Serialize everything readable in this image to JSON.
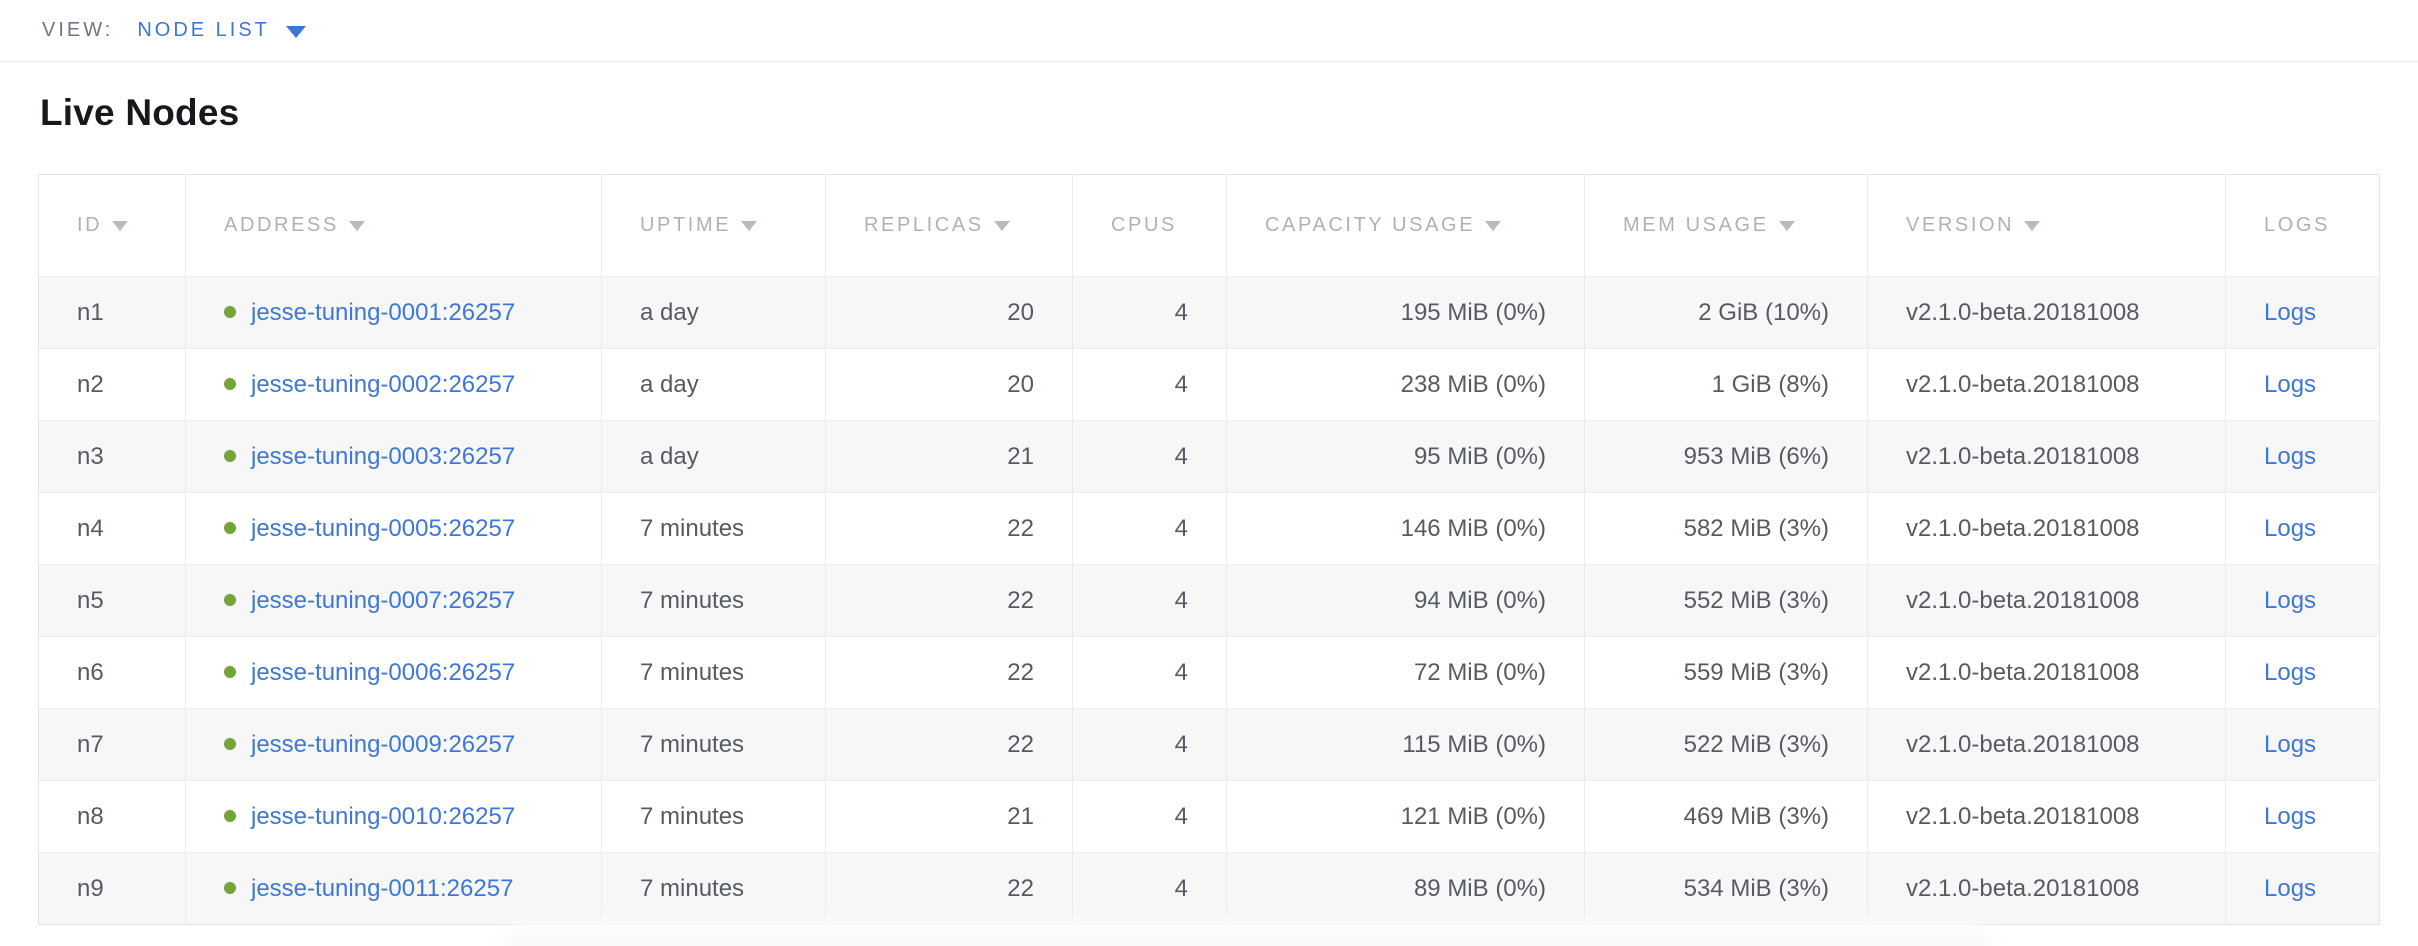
{
  "view_bar": {
    "label": "VIEW:",
    "selected": "NODE LIST"
  },
  "page": {
    "title": "Live Nodes"
  },
  "colors": {
    "accent_blue": "#3e77d6",
    "live_status_green": "#72a436",
    "header_text": "#aeb2b8",
    "cell_text": "#565b63"
  },
  "table": {
    "columns": [
      {
        "key": "id",
        "label": "ID",
        "sortable": true,
        "align": "left"
      },
      {
        "key": "address",
        "label": "ADDRESS",
        "sortable": true,
        "align": "left"
      },
      {
        "key": "uptime",
        "label": "UPTIME",
        "sortable": true,
        "align": "left"
      },
      {
        "key": "replicas",
        "label": "REPLICAS",
        "sortable": true,
        "align": "right"
      },
      {
        "key": "cpus",
        "label": "CPUS",
        "sortable": false,
        "align": "right"
      },
      {
        "key": "capacity",
        "label": "CAPACITY USAGE",
        "sortable": true,
        "align": "right"
      },
      {
        "key": "mem",
        "label": "MEM USAGE",
        "sortable": true,
        "align": "right"
      },
      {
        "key": "version",
        "label": "VERSION",
        "sortable": true,
        "align": "left"
      },
      {
        "key": "logs",
        "label": "LOGS",
        "sortable": false,
        "align": "left"
      }
    ],
    "rows": [
      {
        "id": "n1",
        "address": "jesse-tuning-0001:26257",
        "status": "live",
        "uptime": "a day",
        "replicas": "20",
        "cpus": "4",
        "capacity": "195 MiB (0%)",
        "mem": "2 GiB (10%)",
        "version": "v2.1.0-beta.20181008",
        "logs": "Logs"
      },
      {
        "id": "n2",
        "address": "jesse-tuning-0002:26257",
        "status": "live",
        "uptime": "a day",
        "replicas": "20",
        "cpus": "4",
        "capacity": "238 MiB (0%)",
        "mem": "1 GiB (8%)",
        "version": "v2.1.0-beta.20181008",
        "logs": "Logs"
      },
      {
        "id": "n3",
        "address": "jesse-tuning-0003:26257",
        "status": "live",
        "uptime": "a day",
        "replicas": "21",
        "cpus": "4",
        "capacity": "95 MiB (0%)",
        "mem": "953 MiB (6%)",
        "version": "v2.1.0-beta.20181008",
        "logs": "Logs"
      },
      {
        "id": "n4",
        "address": "jesse-tuning-0005:26257",
        "status": "live",
        "uptime": "7 minutes",
        "replicas": "22",
        "cpus": "4",
        "capacity": "146 MiB (0%)",
        "mem": "582 MiB (3%)",
        "version": "v2.1.0-beta.20181008",
        "logs": "Logs"
      },
      {
        "id": "n5",
        "address": "jesse-tuning-0007:26257",
        "status": "live",
        "uptime": "7 minutes",
        "replicas": "22",
        "cpus": "4",
        "capacity": "94 MiB (0%)",
        "mem": "552 MiB (3%)",
        "version": "v2.1.0-beta.20181008",
        "logs": "Logs"
      },
      {
        "id": "n6",
        "address": "jesse-tuning-0006:26257",
        "status": "live",
        "uptime": "7 minutes",
        "replicas": "22",
        "cpus": "4",
        "capacity": "72 MiB (0%)",
        "mem": "559 MiB (3%)",
        "version": "v2.1.0-beta.20181008",
        "logs": "Logs"
      },
      {
        "id": "n7",
        "address": "jesse-tuning-0009:26257",
        "status": "live",
        "uptime": "7 minutes",
        "replicas": "22",
        "cpus": "4",
        "capacity": "115 MiB (0%)",
        "mem": "522 MiB (3%)",
        "version": "v2.1.0-beta.20181008",
        "logs": "Logs"
      },
      {
        "id": "n8",
        "address": "jesse-tuning-0010:26257",
        "status": "live",
        "uptime": "7 minutes",
        "replicas": "21",
        "cpus": "4",
        "capacity": "121 MiB (0%)",
        "mem": "469 MiB (3%)",
        "version": "v2.1.0-beta.20181008",
        "logs": "Logs"
      },
      {
        "id": "n9",
        "address": "jesse-tuning-0011:26257",
        "status": "live",
        "uptime": "7 minutes",
        "replicas": "22",
        "cpus": "4",
        "capacity": "89 MiB (0%)",
        "mem": "534 MiB (3%)",
        "version": "v2.1.0-beta.20181008",
        "logs": "Logs"
      }
    ]
  }
}
